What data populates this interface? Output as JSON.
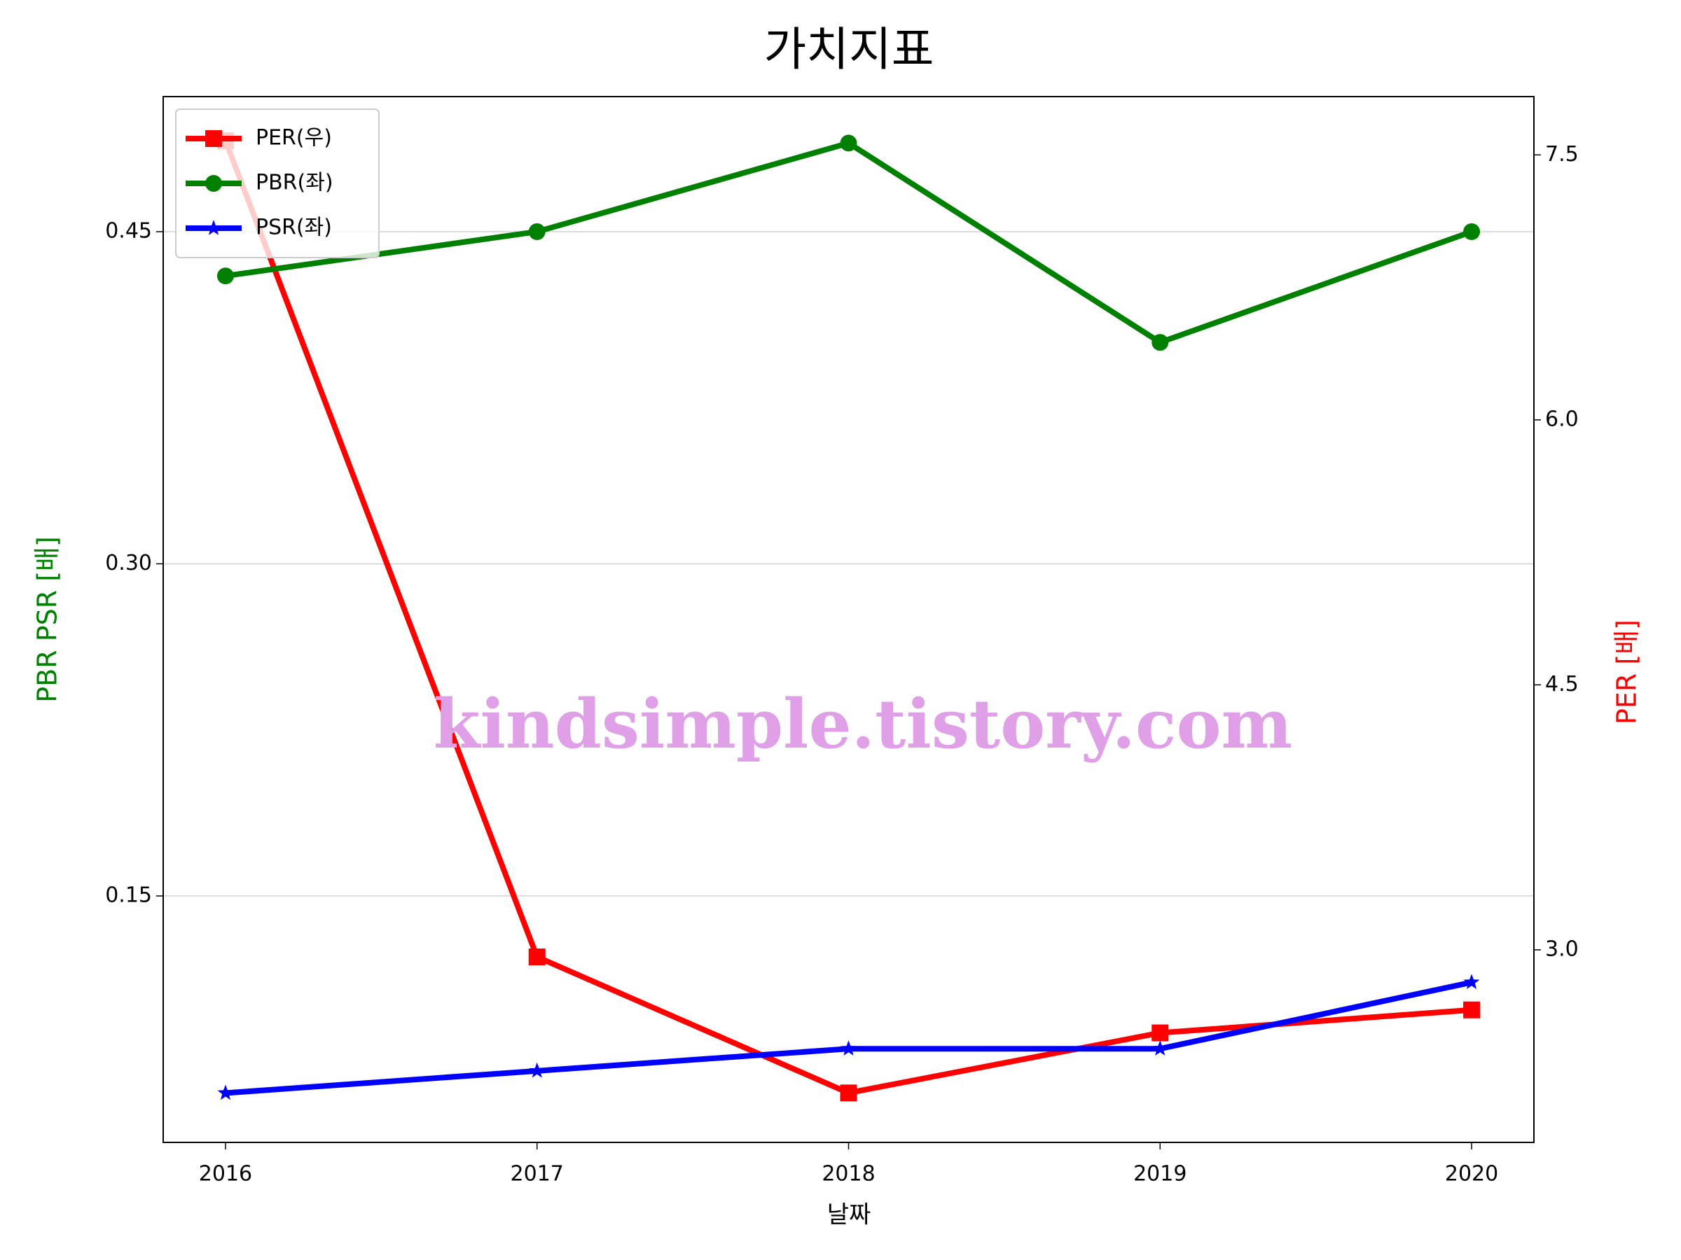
{
  "chart_data": {
    "type": "line",
    "title": "가치지표",
    "x": [
      2016,
      2017,
      2018,
      2019,
      2020
    ],
    "xlim": [
      2015.8,
      2020.2
    ],
    "xticks": [
      2016,
      2017,
      2018,
      2019,
      2020
    ],
    "xlabel": "날짜",
    "ylabel": "PBR PSR [배]",
    "ylabel_color": "green",
    "y2label": "PER [배]",
    "y2label_color": "red",
    "ylim": [
      0.0387,
      0.511
    ],
    "yticks": [
      {
        "value": 0.15,
        "label": "0.15"
      },
      {
        "value": 0.3,
        "label": "0.30"
      },
      {
        "value": 0.45,
        "label": "0.45"
      }
    ],
    "y2lim": [
      1.91,
      7.83
    ],
    "y2ticks": [
      {
        "value": 3.0,
        "label": "3.0"
      },
      {
        "value": 4.5,
        "label": "4.5"
      },
      {
        "value": 6.0,
        "label": "6.0"
      },
      {
        "value": 7.5,
        "label": "7.5"
      }
    ],
    "grid": true,
    "legend": "upper left",
    "series": [
      {
        "name": "PER(우)",
        "color": "red",
        "marker": "square",
        "axis": "y2",
        "values": [
          7.58,
          2.96,
          2.19,
          2.53,
          2.66
        ]
      },
      {
        "name": "PBR(좌)",
        "color": "green",
        "marker": "circle",
        "values": [
          0.43,
          0.45,
          0.49,
          0.4,
          0.45
        ]
      },
      {
        "name": "PSR(좌)",
        "color": "blue",
        "marker": "star",
        "values": [
          0.061,
          0.071,
          0.081,
          0.081,
          0.111
        ]
      }
    ],
    "annotation": "kindsimple.tistory.com",
    "annotation_color": "#e0a0e8"
  }
}
